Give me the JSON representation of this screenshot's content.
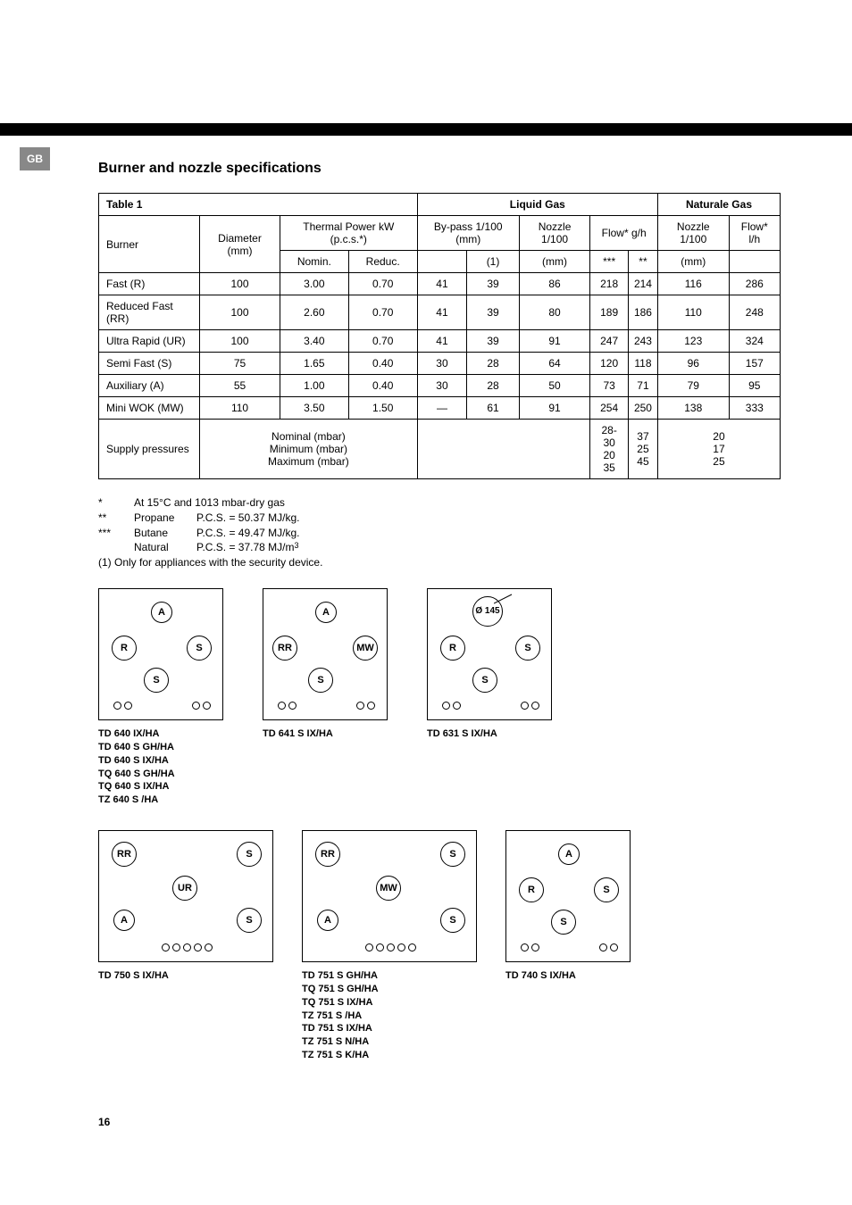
{
  "language_tab": "GB",
  "title": "Burner and nozzle specifications",
  "table": {
    "caption": "Table 1",
    "group_headers": {
      "liquid": "Liquid Gas",
      "natural": "Naturale Gas"
    },
    "col_headers": {
      "burner": "Burner",
      "diameter": "Diameter (mm)",
      "thermal": "Thermal Power kW (p.c.s.*)",
      "bypass": "By-pass 1/100 (mm)",
      "nozzle_l": "Nozzle 1/100",
      "flow_l": "Flow* g/h",
      "nozzle_n": "Nozzle 1/100",
      "flow_n": "Flow* l/h"
    },
    "sub_headers": {
      "nomin": "Nomin.",
      "reduc": "Reduc.",
      "one": "(1)",
      "mm": "(mm)",
      "s3": "***",
      "s2": "**"
    },
    "rows": [
      {
        "name": "Fast (R)",
        "diam": "100",
        "nomin": "3.00",
        "reduc": "0.70",
        "bp": "41",
        "bp1": "39",
        "nl": "86",
        "f3": "218",
        "f2": "214",
        "nn": "116",
        "fn": "286"
      },
      {
        "name": "Reduced Fast (RR)",
        "diam": "100",
        "nomin": "2.60",
        "reduc": "0.70",
        "bp": "41",
        "bp1": "39",
        "nl": "80",
        "f3": "189",
        "f2": "186",
        "nn": "110",
        "fn": "248"
      },
      {
        "name": "Ultra Rapid (UR)",
        "diam": "100",
        "nomin": "3.40",
        "reduc": "0.70",
        "bp": "41",
        "bp1": "39",
        "nl": "91",
        "f3": "247",
        "f2": "243",
        "nn": "123",
        "fn": "324"
      },
      {
        "name": "Semi Fast (S)",
        "diam": "75",
        "nomin": "1.65",
        "reduc": "0.40",
        "bp": "30",
        "bp1": "28",
        "nl": "64",
        "f3": "120",
        "f2": "118",
        "nn": "96",
        "fn": "157"
      },
      {
        "name": "Auxiliary (A)",
        "diam": "55",
        "nomin": "1.00",
        "reduc": "0.40",
        "bp": "30",
        "bp1": "28",
        "nl": "50",
        "f3": "73",
        "f2": "71",
        "nn": "79",
        "fn": "95"
      },
      {
        "name": "Mini WOK (MW)",
        "diam": "110",
        "nomin": "3.50",
        "reduc": "1.50",
        "bp": "—",
        "bp1": "61",
        "nl": "91",
        "f3": "254",
        "f2": "250",
        "nn": "138",
        "fn": "333"
      }
    ],
    "supply": {
      "label": "Supply pressures",
      "lines": "Nominal (mbar)\nMinimum (mbar)\nMaximum (mbar)",
      "c1": "28-30\n20\n35",
      "c2": "37\n25\n45",
      "c3": "20\n17\n25"
    }
  },
  "footnotes": {
    "l1": {
      "sym": "*",
      "text": "At 15°C and 1013 mbar-dry gas"
    },
    "l2": {
      "sym": "**",
      "name": "Propane",
      "text": "P.C.S. = 50.37 MJ/kg."
    },
    "l3": {
      "sym": "***",
      "name": "Butane",
      "text": "P.C.S. = 49.47 MJ/kg."
    },
    "l4": {
      "sym": "",
      "name": "Natural",
      "text": "P.C.S.  =  37.78  MJ/m"
    },
    "l5": "(1) Only for appliances with the security device."
  },
  "diagrams": {
    "d1": {
      "burners": {
        "A": "A",
        "R": "R",
        "S1": "S",
        "S2": "S"
      },
      "models": "TD 640 IX/HA\nTD 640 S GH/HA\nTD 640 S IX/HA\nTQ 640 S GH/HA\nTQ 640 S IX/HA\nTZ 640 S /HA"
    },
    "d2": {
      "burners": {
        "A": "A",
        "RR": "RR",
        "MW": "MW",
        "S": "S"
      },
      "models": "TD 641 S IX/HA"
    },
    "d3": {
      "burners": {
        "D": "Ø 145",
        "R": "R",
        "S1": "S",
        "S2": "S"
      },
      "models": "TD 631 S IX/HA"
    },
    "d4": {
      "burners": {
        "RR": "RR",
        "S1": "S",
        "UR": "UR",
        "A": "A",
        "S2": "S"
      },
      "models": "TD 750 S IX/HA"
    },
    "d5": {
      "burners": {
        "RR": "RR",
        "S1": "S",
        "MW": "MW",
        "A": "A",
        "S2": "S"
      },
      "models": "TD 751 S GH/HA\nTQ 751 S GH/HA\nTQ 751 S IX/HA\nTZ 751 S /HA\nTD 751 S IX/HA\nTZ 751 S N/HA\nTZ 751 S K/HA"
    },
    "d6": {
      "burners": {
        "A": "A",
        "R": "R",
        "S1": "S",
        "S2": "S"
      },
      "models": "TD 740 S IX/HA"
    }
  },
  "page_num": "16"
}
